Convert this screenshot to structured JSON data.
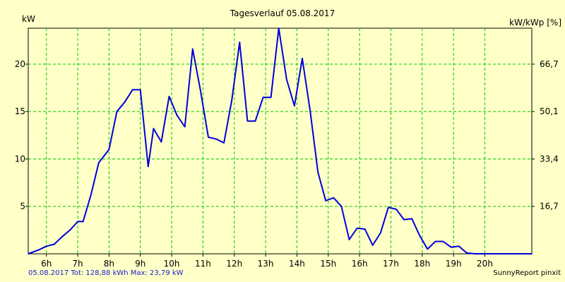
{
  "chart_data": {
    "type": "line",
    "title": "Tagesverlauf 05.08.2017",
    "ylabel_left": "kW",
    "ylabel_right": "kW/kWp [%]",
    "xlabel": "",
    "x_ticks": [
      "6h",
      "7h",
      "8h",
      "9h",
      "10h",
      "11h",
      "12h",
      "13h",
      "14h",
      "15h",
      "16h",
      "17h",
      "18h",
      "19h",
      "20h"
    ],
    "x_tick_values": [
      6,
      7,
      8,
      9,
      10,
      11,
      12,
      13,
      14,
      15,
      16,
      17,
      18,
      19,
      20
    ],
    "xlim": [
      5.42,
      21.5
    ],
    "y_left_ticks": [
      5,
      10,
      15,
      20
    ],
    "y_left_tick_labels": [
      "5",
      "10",
      "15",
      "20"
    ],
    "y_right_tick_values": [
      5,
      10,
      15,
      20
    ],
    "y_right_tick_labels": [
      "16,7",
      "33,4",
      "50,1",
      "66,7"
    ],
    "ylim": [
      0,
      23.79
    ],
    "grid": true,
    "series": [
      {
        "name": "kW",
        "color": "#0000dd",
        "x": [
          5.42,
          5.75,
          6.0,
          6.25,
          6.5,
          6.75,
          7.0,
          7.17,
          7.42,
          7.67,
          8.0,
          8.25,
          8.5,
          8.75,
          9.0,
          9.25,
          9.42,
          9.67,
          9.92,
          10.17,
          10.42,
          10.67,
          10.92,
          11.17,
          11.42,
          11.67,
          11.92,
          12.17,
          12.42,
          12.67,
          12.92,
          13.17,
          13.42,
          13.67,
          13.92,
          14.17,
          14.42,
          14.67,
          14.92,
          15.17,
          15.42,
          15.67,
          15.92,
          16.17,
          16.42,
          16.67,
          16.92,
          17.17,
          17.42,
          17.67,
          17.92,
          18.17,
          18.42,
          18.67,
          18.92,
          19.17,
          19.42,
          19.67,
          19.92,
          20.17,
          20.42,
          20.67,
          21.5
        ],
        "values": [
          0.0,
          0.4,
          0.8,
          1.0,
          1.8,
          2.5,
          3.4,
          3.4,
          6.2,
          9.6,
          11.0,
          15.0,
          16.0,
          17.3,
          17.3,
          9.2,
          13.2,
          11.8,
          16.6,
          14.6,
          13.4,
          21.6,
          17.2,
          12.3,
          12.1,
          11.7,
          16.2,
          22.3,
          14.0,
          14.0,
          16.5,
          16.5,
          23.79,
          18.4,
          15.6,
          20.6,
          15.1,
          8.6,
          5.6,
          5.9,
          5.0,
          1.5,
          2.7,
          2.6,
          0.9,
          2.2,
          4.9,
          4.7,
          3.6,
          3.7,
          1.9,
          0.5,
          1.3,
          1.3,
          0.7,
          0.8,
          0.1,
          0.0,
          0.0,
          0.0,
          0.0,
          0.0,
          0.0
        ]
      }
    ]
  },
  "footer": {
    "summary": "05.08.2017 Tot: 128,88 kWh Max: 23,79 kW",
    "brand": "SunnyReport pinxit"
  },
  "colors": {
    "background": "#ffffc8",
    "plot_background": "#ffffc8",
    "grid": "#00cc00",
    "line": "#0000dd",
    "axis": "#000000"
  }
}
